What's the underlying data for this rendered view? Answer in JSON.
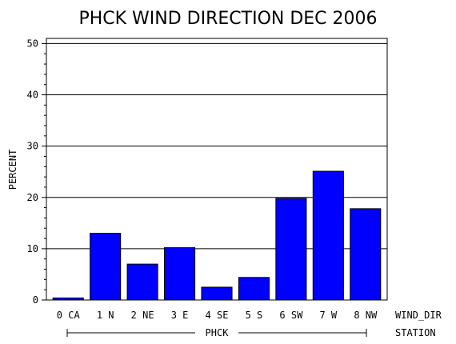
{
  "chart_data": {
    "type": "bar",
    "title": "PHCK WIND DIRECTION DEC 2006",
    "ylabel": "PERCENT",
    "xlabel": "WIND_DIR",
    "group_axis_label": "STATION",
    "group_label": "PHCK",
    "ylim": [
      0,
      51
    ],
    "yticks": [
      0,
      10,
      20,
      30,
      40,
      50
    ],
    "grid": true,
    "categories": [
      "0 CA",
      "1 N",
      "2 NE",
      "3 E",
      "4 SE",
      "5 S",
      "6 SW",
      "7 W",
      "8 NW"
    ],
    "values": [
      0.4,
      13.0,
      7.0,
      10.2,
      2.5,
      4.4,
      19.8,
      25.1,
      17.8
    ],
    "bar_color": "#0000ff"
  }
}
